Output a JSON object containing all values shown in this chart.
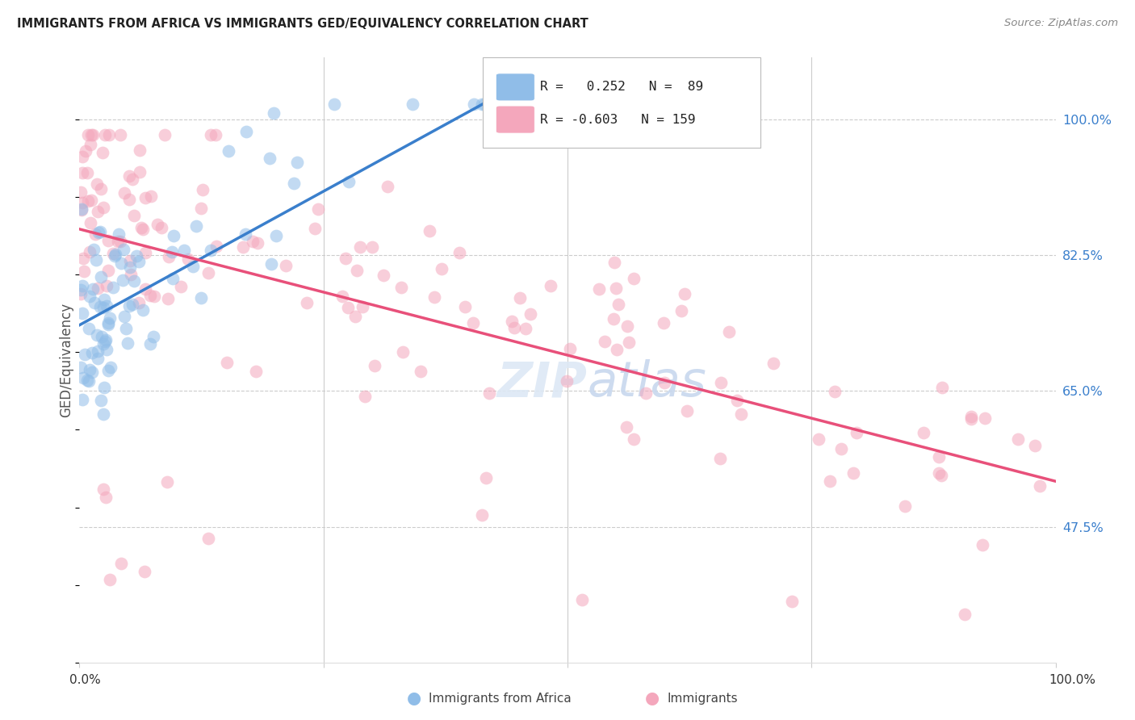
{
  "title": "IMMIGRANTS FROM AFRICA VS IMMIGRANTS GED/EQUIVALENCY CORRELATION CHART",
  "source": "Source: ZipAtlas.com",
  "ylabel": "GED/Equivalency",
  "blue_R": 0.252,
  "blue_N": 89,
  "pink_R": -0.603,
  "pink_N": 159,
  "blue_color": "#90BDE8",
  "pink_color": "#F4A7BC",
  "blue_line_color": "#3A7FCC",
  "pink_line_color": "#E8507A",
  "background_color": "#FFFFFF",
  "grid_color": "#CCCCCC",
  "ytick_values": [
    100.0,
    82.5,
    65.0,
    47.5
  ],
  "y_min": 30.0,
  "y_max": 108.0,
  "x_min": 0.0,
  "x_max": 100.0
}
